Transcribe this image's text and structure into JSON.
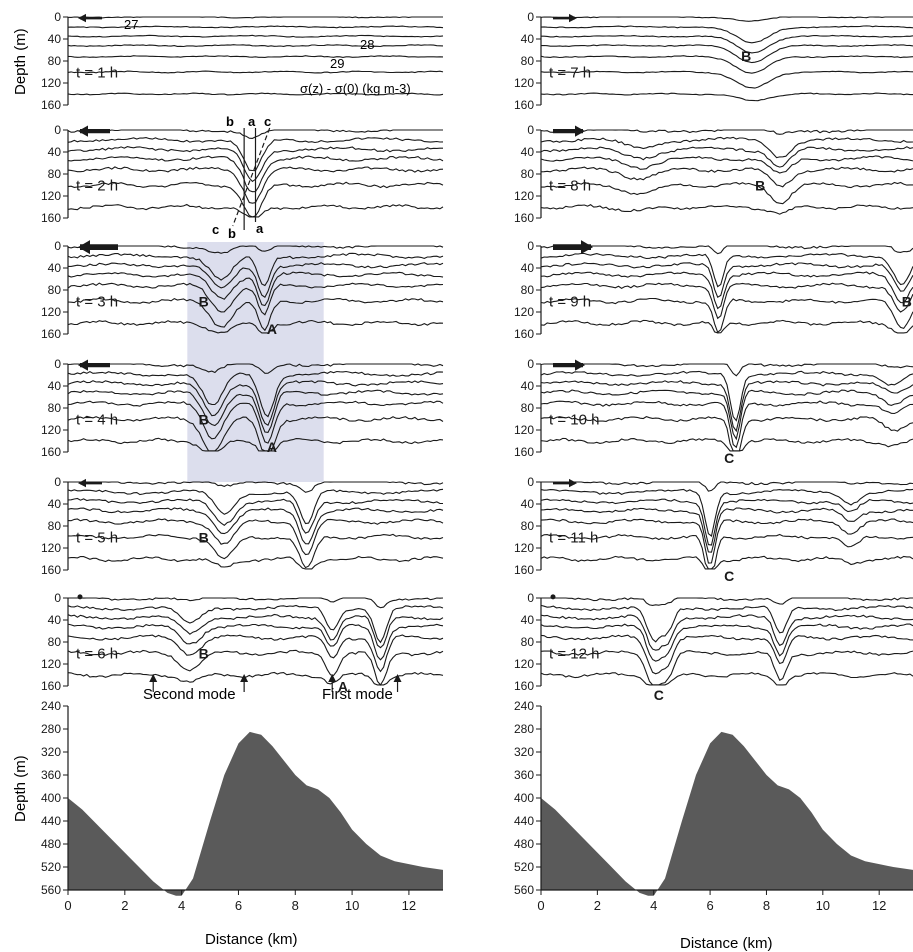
{
  "figure": {
    "depth_label": "Depth (m)",
    "distance_label": "Distance (km)",
    "density_label": "σ(z) - σ(0) (kg m-3)",
    "isopycnal_labels": [
      "27",
      "28",
      "29"
    ],
    "section_marks": [
      "b",
      "a",
      "c",
      "c",
      "b",
      "a"
    ],
    "mode_labels": [
      "Second mode",
      "First mode"
    ],
    "depth_ticks": [
      "0",
      "40",
      "80",
      "120",
      "160"
    ],
    "bathy_ticks": [
      "240",
      "280",
      "320",
      "360",
      "400",
      "440",
      "480",
      "520",
      "560"
    ],
    "distance_ticks": [
      "0",
      "2",
      "4",
      "6",
      "8",
      "10",
      "12"
    ],
    "left_panels": [
      {
        "time": "t = 1 h",
        "arrow_strength": 1,
        "arrow": "left",
        "features": []
      },
      {
        "time": "t = 2 h",
        "arrow_strength": 2,
        "arrow": "left",
        "features": []
      },
      {
        "time": "t = 3 h",
        "arrow_strength": 3,
        "arrow": "left",
        "features": [
          "B",
          "A"
        ]
      },
      {
        "time": "t = 4 h",
        "arrow_strength": 2,
        "arrow": "left",
        "features": [
          "B",
          "A"
        ]
      },
      {
        "time": "t = 5 h",
        "arrow_strength": 1,
        "arrow": "left",
        "features": [
          "B"
        ]
      },
      {
        "time": "t = 6 h",
        "arrow_strength": 0,
        "arrow": "none",
        "features": [
          "B",
          "A"
        ]
      }
    ],
    "right_panels": [
      {
        "time": "t = 7 h",
        "arrow_strength": 1,
        "arrow": "right",
        "features": [
          "B"
        ]
      },
      {
        "time": "t = 8 h",
        "arrow_strength": 2,
        "arrow": "right",
        "features": [
          "B"
        ]
      },
      {
        "time": "t = 9 h",
        "arrow_strength": 3,
        "arrow": "right",
        "features": [
          "B"
        ]
      },
      {
        "time": "t = 10 h",
        "arrow_strength": 2,
        "arrow": "right",
        "features": [
          "C"
        ]
      },
      {
        "time": "t = 11 h",
        "arrow_strength": 1,
        "arrow": "right",
        "features": [
          "C"
        ]
      },
      {
        "time": "t = 12 h",
        "arrow_strength": 0,
        "arrow": "none",
        "features": [
          "C"
        ]
      }
    ],
    "colors": {
      "ink": "#1a1a1a",
      "bathymetry": "#5a5a5a",
      "highlight": "#c9cce3"
    }
  },
  "chart_data": {
    "type": "line",
    "x_range_km": [
      0,
      13.2
    ],
    "depth_range_m": [
      0,
      160
    ],
    "bathymetry_depth_range_m": [
      240,
      560
    ],
    "bathymetry": {
      "x_km": [
        0,
        0.5,
        1,
        1.5,
        2,
        2.5,
        3,
        3.5,
        3.8,
        4.0,
        4.4,
        5,
        5.5,
        6,
        6.4,
        6.8,
        7.2,
        7.6,
        8,
        8.4,
        8.8,
        9.2,
        9.6,
        10,
        10.5,
        11,
        11.5,
        12,
        12.5,
        13.2
      ],
      "depth_m": [
        400,
        420,
        445,
        470,
        495,
        520,
        545,
        565,
        570,
        570,
        540,
        440,
        360,
        305,
        285,
        290,
        310,
        335,
        360,
        378,
        385,
        400,
        425,
        455,
        480,
        500,
        510,
        515,
        520,
        525
      ]
    }
  }
}
